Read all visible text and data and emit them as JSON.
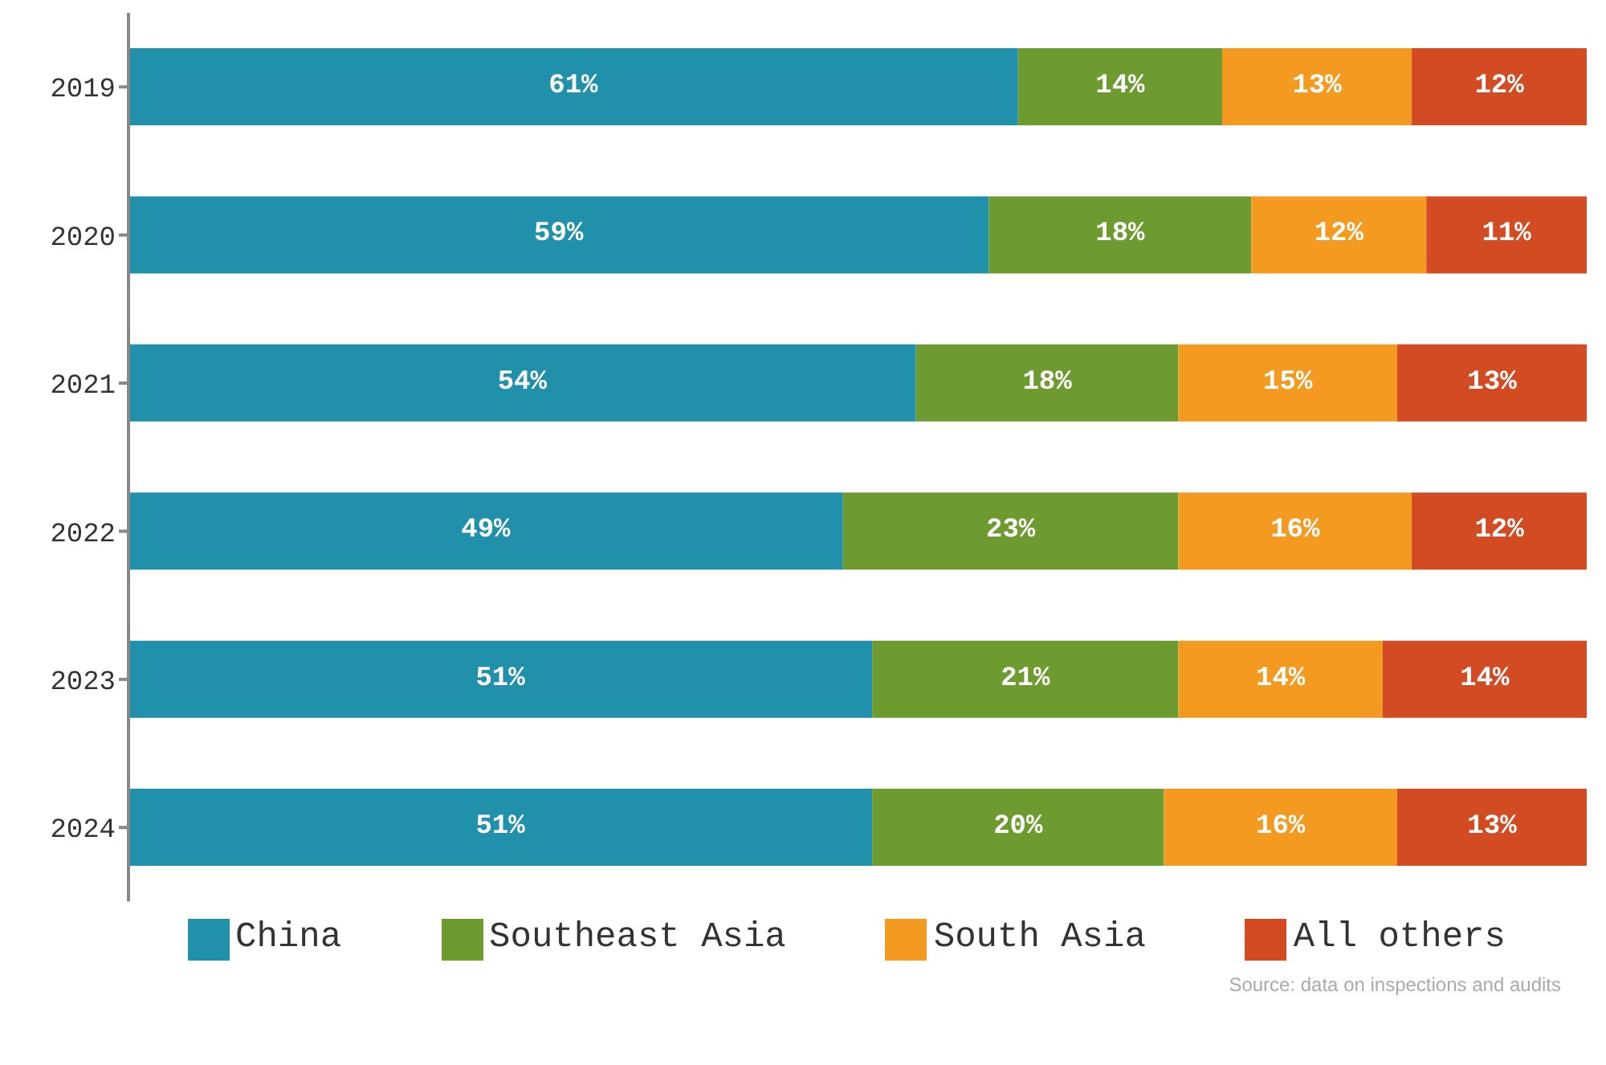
{
  "chart_data": {
    "type": "bar",
    "orientation": "horizontal",
    "stacked": true,
    "categories": [
      "2019",
      "2020",
      "2021",
      "2022",
      "2023",
      "2024"
    ],
    "series": [
      {
        "name": "China",
        "color": "#2190ab",
        "values": [
          61,
          59,
          54,
          49,
          51,
          51
        ],
        "value_labels": [
          "61%",
          "59%",
          "54%",
          "49%",
          "51%",
          "51%"
        ]
      },
      {
        "name": "Southeast Asia",
        "color": "#6e9b30",
        "values": [
          14,
          18,
          18,
          23,
          21,
          20
        ],
        "value_labels": [
          "14%",
          "18%",
          "18%",
          "23%",
          "21%",
          "20%"
        ]
      },
      {
        "name": "South Asia",
        "color": "#f49a20",
        "values": [
          13,
          12,
          15,
          16,
          14,
          16
        ],
        "value_labels": [
          "13%",
          "12%",
          "15%",
          "16%",
          "14%",
          "16%"
        ]
      },
      {
        "name": "All others",
        "color": "#d24b22",
        "values": [
          12,
          11,
          13,
          12,
          14,
          13
        ],
        "value_labels": [
          "12%",
          "11%",
          "13%",
          "12%",
          "14%",
          "13%"
        ]
      }
    ],
    "legend": "bottom",
    "grid": false,
    "annotations": [
      "Source: data on inspections and audits"
    ]
  }
}
